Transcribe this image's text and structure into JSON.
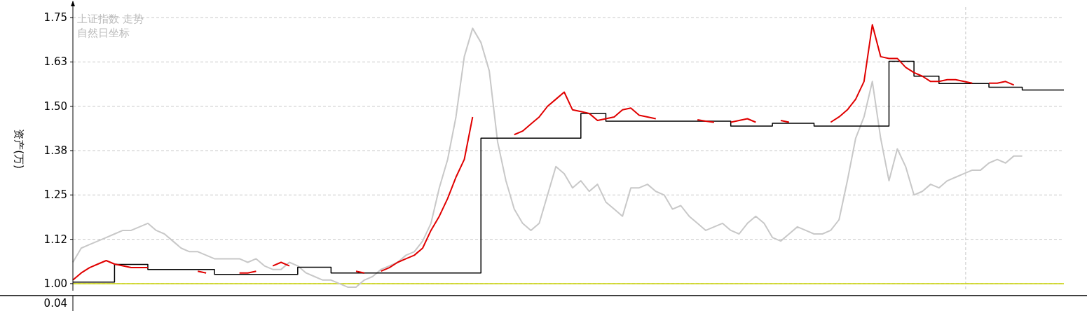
{
  "chart_data": [
    {
      "type": "line",
      "ylabel": "资产(万)",
      "annotations": [
        "上证指数 走势",
        "自然日坐标"
      ],
      "categories": [
        null,
        null,
        null,
        null,
        null,
        null,
        null,
        null,
        null,
        null,
        null,
        null,
        null,
        null,
        null,
        null,
        null,
        null,
        null,
        null,
        null,
        null,
        null,
        null,
        null,
        null,
        null,
        null,
        null,
        null,
        null,
        null,
        null,
        null,
        null,
        null,
        null,
        null,
        null,
        null,
        null,
        null,
        null,
        null,
        null,
        null,
        null,
        null,
        null,
        null,
        null,
        null,
        null,
        null,
        null,
        null,
        null,
        null,
        null,
        null,
        null,
        null,
        null,
        null,
        null,
        null,
        null,
        null,
        null,
        null,
        null,
        null,
        null,
        null,
        null,
        null,
        null,
        null,
        null,
        null,
        null,
        null,
        null,
        null,
        null,
        null,
        null,
        null,
        null,
        null,
        null,
        null,
        null,
        null,
        null,
        null,
        null,
        null,
        null,
        null,
        null,
        null,
        null,
        null,
        null,
        null,
        null,
        null,
        null,
        null,
        null,
        null,
        null,
        null,
        null,
        null,
        null,
        null,
        null,
        null
      ],
      "ylim": [
        0.98,
        1.78
      ],
      "yticks": [
        {
          "value": 1.0,
          "label": "1.00"
        },
        {
          "value": 1.125,
          "label": "1.12"
        },
        1.25,
        {
          "value": 1.375,
          "label": "1.38"
        },
        {
          "value": 1.5,
          "label": "1.50"
        },
        {
          "value": 1.625,
          "label": "1.63"
        },
        1.75
      ],
      "grid": true,
      "tick_labels": "y",
      "ref_lines": [
        {
          "axis": "y",
          "value": 1.0,
          "color": "#c8d200"
        }
      ],
      "series": [
        {
          "type": "line",
          "color": "#c8c8c8",
          "values": [
            1.06,
            1.1,
            1.11,
            1.12,
            1.13,
            1.14,
            1.15,
            1.15,
            1.16,
            1.17,
            1.15,
            1.14,
            1.12,
            1.1,
            1.09,
            1.09,
            1.08,
            1.07,
            1.07,
            1.07,
            1.07,
            1.06,
            1.07,
            1.05,
            1.04,
            1.04,
            1.06,
            1.05,
            1.03,
            1.02,
            1.01,
            1.01,
            1.0,
            0.99,
            0.99,
            1.01,
            1.02,
            1.04,
            1.05,
            1.06,
            1.08,
            1.09,
            1.12,
            1.17,
            1.27,
            1.35,
            1.47,
            1.64,
            1.72,
            1.68,
            1.6,
            1.4,
            1.29,
            1.21,
            1.17,
            1.15,
            1.17,
            1.25,
            1.33,
            1.31,
            1.27,
            1.29,
            1.26,
            1.28,
            1.23,
            1.21,
            1.19,
            1.27,
            1.27,
            1.28,
            1.26,
            1.25,
            1.21,
            1.22,
            1.19,
            1.17,
            1.15,
            1.16,
            1.17,
            1.15,
            1.14,
            1.17,
            1.19,
            1.17,
            1.13,
            1.12,
            1.14,
            1.16,
            1.15,
            1.14,
            1.14,
            1.15,
            1.18,
            1.29,
            1.41,
            1.47,
            1.57,
            1.41,
            1.29,
            1.38,
            1.33,
            1.25,
            1.26,
            1.28,
            1.27,
            1.29,
            1.3,
            1.31,
            1.32,
            1.32,
            1.34,
            1.35,
            1.34,
            1.36,
            1.36,
            null,
            null,
            null,
            null,
            null
          ]
        },
        {
          "type": "step",
          "color": "#000000",
          "values": [
            1.004,
            1.004,
            1.004,
            1.004,
            1.004,
            1.054,
            1.054,
            1.054,
            1.054,
            1.04,
            1.04,
            1.04,
            1.04,
            1.04,
            1.04,
            1.04,
            1.04,
            1.026,
            1.026,
            1.026,
            1.026,
            1.026,
            1.026,
            1.026,
            1.026,
            1.026,
            1.026,
            1.046,
            1.046,
            1.046,
            1.046,
            1.03,
            1.03,
            1.03,
            1.03,
            1.03,
            1.03,
            1.03,
            1.03,
            1.03,
            1.03,
            1.03,
            1.03,
            1.03,
            1.03,
            1.03,
            1.03,
            1.03,
            1.03,
            1.41,
            1.41,
            1.41,
            1.41,
            1.41,
            1.41,
            1.41,
            1.41,
            1.41,
            1.41,
            1.41,
            1.41,
            1.48,
            1.48,
            1.48,
            1.458,
            1.458,
            1.458,
            1.458,
            1.458,
            1.458,
            1.458,
            1.458,
            1.458,
            1.458,
            1.458,
            1.458,
            1.458,
            1.458,
            1.458,
            1.444,
            1.444,
            1.444,
            1.444,
            1.444,
            1.452,
            1.452,
            1.452,
            1.452,
            1.452,
            1.444,
            1.444,
            1.444,
            1.444,
            1.444,
            1.444,
            1.444,
            1.444,
            1.444,
            1.627,
            1.627,
            1.627,
            1.585,
            1.585,
            1.585,
            1.564,
            1.564,
            1.564,
            1.564,
            1.564,
            1.564,
            1.554,
            1.554,
            1.554,
            1.554,
            1.546,
            1.546,
            1.546,
            1.546,
            1.546,
            1.546
          ]
        },
        {
          "type": "line",
          "color": "#e00000",
          "values": [
            1.01,
            1.03,
            1.045,
            1.055,
            1.065,
            1.055,
            1.05,
            1.045,
            1.045,
            1.045,
            null,
            null,
            null,
            null,
            null,
            1.035,
            1.03,
            null,
            null,
            null,
            1.03,
            1.03,
            1.035,
            null,
            1.05,
            1.06,
            1.05,
            null,
            null,
            null,
            null,
            null,
            null,
            null,
            1.035,
            1.03,
            null,
            1.035,
            1.045,
            1.06,
            1.07,
            1.08,
            1.1,
            1.15,
            1.19,
            1.24,
            1.3,
            1.35,
            1.47,
            null,
            null,
            null,
            null,
            1.42,
            1.43,
            1.45,
            1.47,
            1.5,
            1.52,
            1.54,
            1.49,
            1.485,
            1.48,
            1.46,
            1.465,
            1.47,
            1.49,
            1.495,
            1.475,
            1.47,
            1.465,
            null,
            null,
            null,
            null,
            1.462,
            1.458,
            1.455,
            null,
            1.455,
            1.46,
            1.465,
            1.455,
            null,
            null,
            1.46,
            1.455,
            null,
            null,
            null,
            null,
            1.455,
            1.47,
            1.49,
            1.52,
            1.57,
            1.73,
            1.64,
            1.635,
            1.635,
            1.61,
            1.595,
            1.585,
            1.57,
            1.57,
            1.575,
            1.575,
            1.57,
            1.565,
            null,
            1.565,
            1.565,
            1.57,
            1.56,
            null,
            null,
            null,
            null,
            null,
            null
          ]
        }
      ]
    },
    {
      "type": "other",
      "annotations": [
        "0.04"
      ]
    }
  ]
}
